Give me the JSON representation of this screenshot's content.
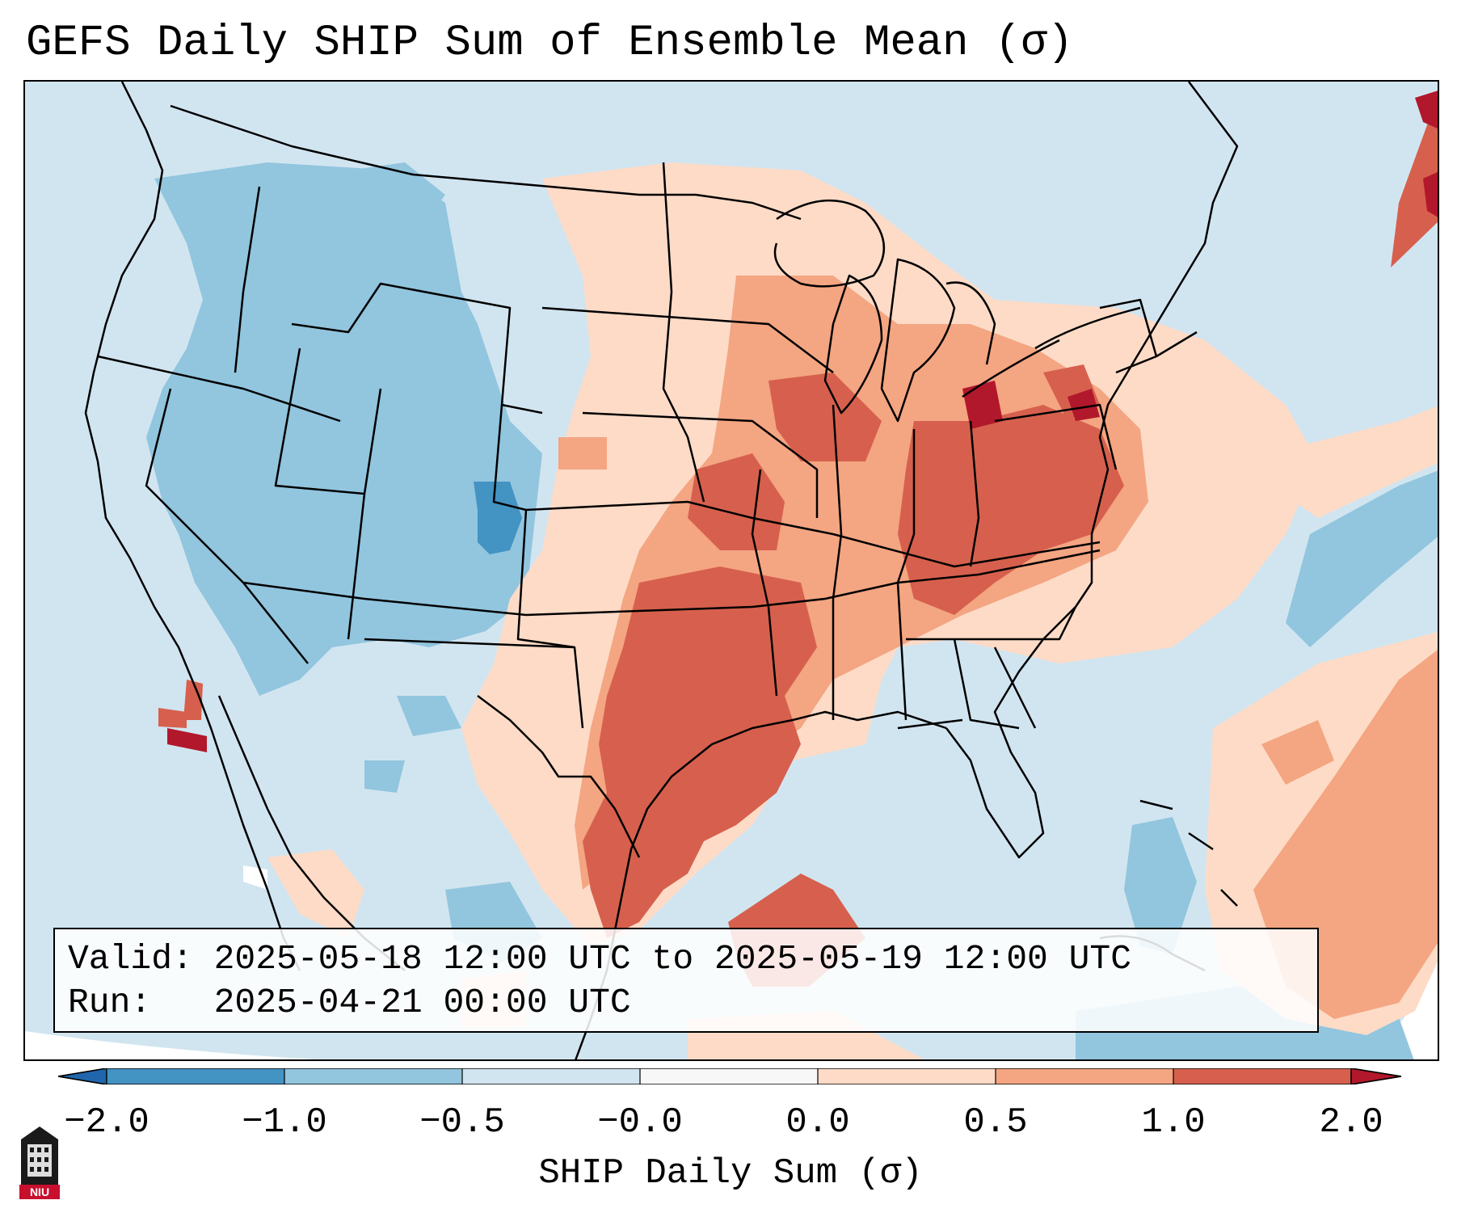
{
  "title": "GEFS Daily SHIP Sum of Ensemble Mean (σ)",
  "info": {
    "valid_line": "Valid: 2025-05-18 12:00 UTC to 2025-05-19 12:00 UTC",
    "run_line": "Run:   2025-04-21 00:00 UTC"
  },
  "colorbar": {
    "label": "SHIP Daily Sum (σ)",
    "tick_labels": [
      "−2.0",
      "−1.0",
      "−0.5",
      "−0.0",
      "0.0",
      "0.5",
      "1.0",
      "2.0"
    ],
    "bins": [
      {
        "min": -2.0,
        "max": -1.0,
        "color": "#4393c3"
      },
      {
        "min": -1.0,
        "max": -0.5,
        "color": "#92c5de"
      },
      {
        "min": -0.5,
        "max": 0.0,
        "color": "#d1e5f0"
      },
      {
        "min": 0.0,
        "max": 0.0,
        "color": "#f7f7f7"
      },
      {
        "min": 0.0,
        "max": 0.5,
        "color": "#fddbc7"
      },
      {
        "min": 0.5,
        "max": 1.0,
        "color": "#f4a582"
      },
      {
        "min": 1.0,
        "max": 2.0,
        "color": "#d6604d"
      }
    ],
    "under_color": "#2166ac",
    "over_color": "#b2182b"
  },
  "logo": {
    "text": "NIU",
    "icon": "niu-building-logo"
  }
}
